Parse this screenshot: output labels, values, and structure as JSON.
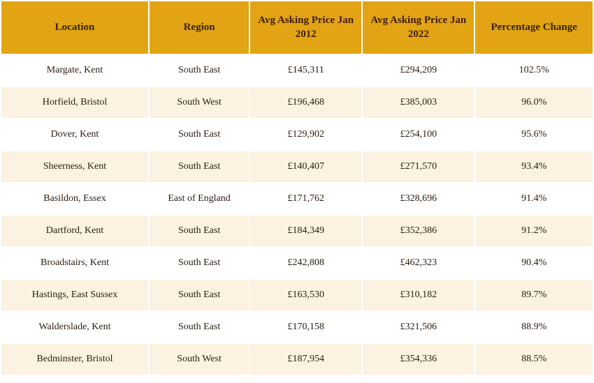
{
  "table": {
    "header_bg": "#e2a414",
    "header_text_color": "#3b1f0f",
    "row_bg_odd": "#ffffff",
    "row_bg_even": "#fcf2e2",
    "columns": [
      "Location",
      "Region",
      "Avg Asking Price Jan 2012",
      "Avg Asking Price Jan 2022",
      "Percentage Change"
    ],
    "rows": [
      [
        "Margate, Kent",
        "South East",
        "£145,311",
        "£294,209",
        "102.5%"
      ],
      [
        "Horfield, Bristol",
        "South West",
        "£196,468",
        "£385,003",
        "96.0%"
      ],
      [
        "Dover, Kent",
        "South East",
        "£129,902",
        "£254,100",
        "95.6%"
      ],
      [
        "Sheerness, Kent",
        "South East",
        "£140,407",
        "£271,570",
        "93.4%"
      ],
      [
        "Basildon, Essex",
        "East of England",
        "£171,762",
        "£328,696",
        "91.4%"
      ],
      [
        "Dartford, Kent",
        "South East",
        "£184,349",
        "£352,386",
        "91.2%"
      ],
      [
        "Broadstairs, Kent",
        "South East",
        "£242,808",
        "£462,323",
        "90.4%"
      ],
      [
        "Hastings, East Sussex",
        "South East",
        "£163,530",
        "£310,182",
        "89.7%"
      ],
      [
        "Walderslade, Kent",
        "South East",
        "£170,158",
        "£321,506",
        "88.9%"
      ],
      [
        "Bedminster, Bristol",
        "South West",
        "£187,954",
        "£354,336",
        "88.5%"
      ]
    ]
  }
}
